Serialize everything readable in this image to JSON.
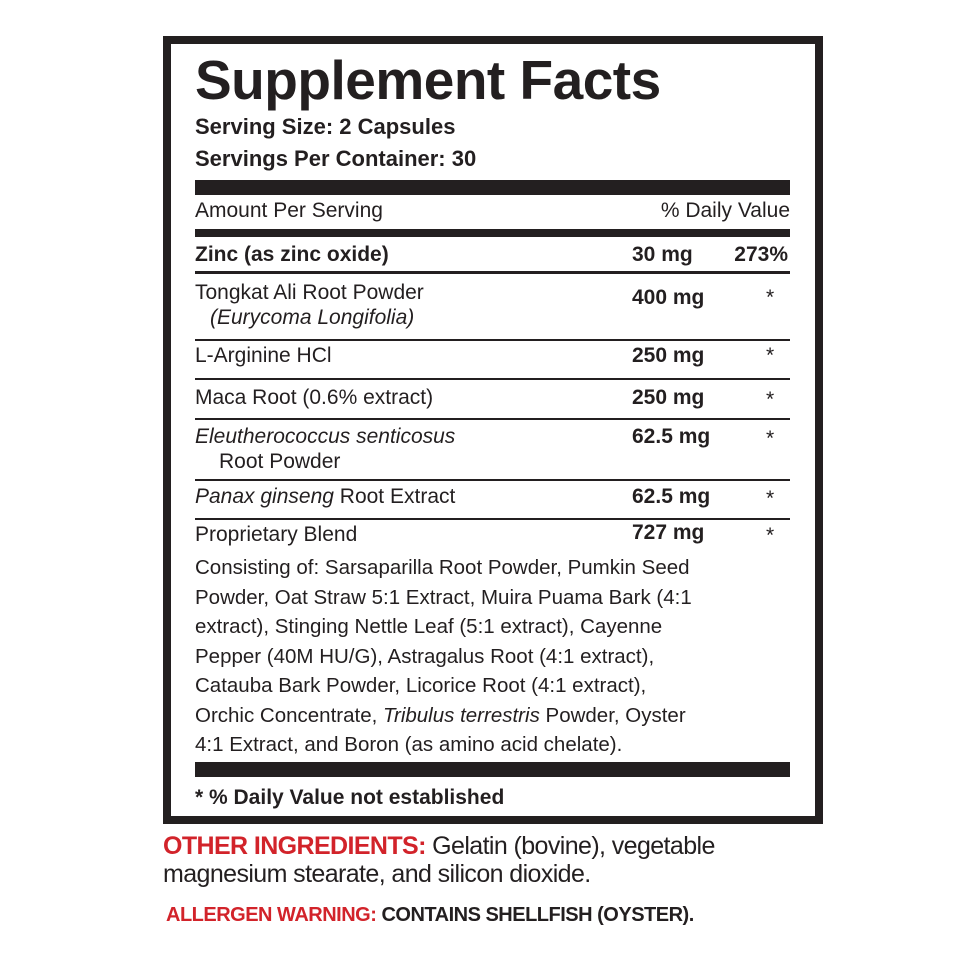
{
  "title": "Supplement Facts",
  "serving_size": "Serving Size: 2 Capsules",
  "servings_per_container": "Servings Per Container: 30",
  "header": {
    "amount": "Amount Per Serving",
    "dv": "% Daily Value"
  },
  "zinc": {
    "name": "Zinc (as zinc oxide)",
    "amount": "30 mg",
    "dv": "273%"
  },
  "rows": [
    {
      "name": "Tongkat Ali Root Powder",
      "sub": "(Eurycoma Longifolia)",
      "amount": "400 mg",
      "dv": "*"
    },
    {
      "name": "L-Arginine HCl",
      "amount": "250 mg",
      "dv": "*"
    },
    {
      "name": "Maca Root (0.6% extract)",
      "amount": "250 mg",
      "dv": "*"
    },
    {
      "name": "Eleutherococcus senticosus",
      "sub": "Root Powder",
      "amount": "62.5 mg",
      "dv": "*"
    },
    {
      "name_italic": "Panax ginseng",
      "name": " Root Extract",
      "amount": "62.5 mg",
      "dv": "*"
    },
    {
      "name": "Proprietary Blend",
      "amount": "727 mg",
      "dv": "*"
    }
  ],
  "blend_lines": [
    "Consisting of: Sarsaparilla Root Powder, Pumkin Seed",
    "Powder, Oat Straw 5:1 Extract, Muira Puama Bark (4:1",
    "extract), Stinging Nettle Leaf (5:1 extract), Cayenne",
    "Pepper (40M HU/G), Astragalus Root (4:1 extract),",
    "Catauba Bark Powder, Licorice Root (4:1 extract),",
    "Orchic Concentrate, ",
    "Tribulus terrestris",
    " Powder, Oyster",
    "4:1 Extract, and Boron (as amino acid chelate)."
  ],
  "footnote": "* % Daily Value not established",
  "other_ingredients": {
    "label": "OTHER INGREDIENTS:",
    "line1": " Gelatin (bovine), vegetable",
    "line2": "magnesium stearate, and silicon dioxide."
  },
  "allergen": {
    "label": "ALLERGEN WARNING:",
    "text": " CONTAINS SHELLFISH (OYSTER)."
  },
  "colors": {
    "text": "#231f20",
    "accent_red": "#d2232a"
  }
}
